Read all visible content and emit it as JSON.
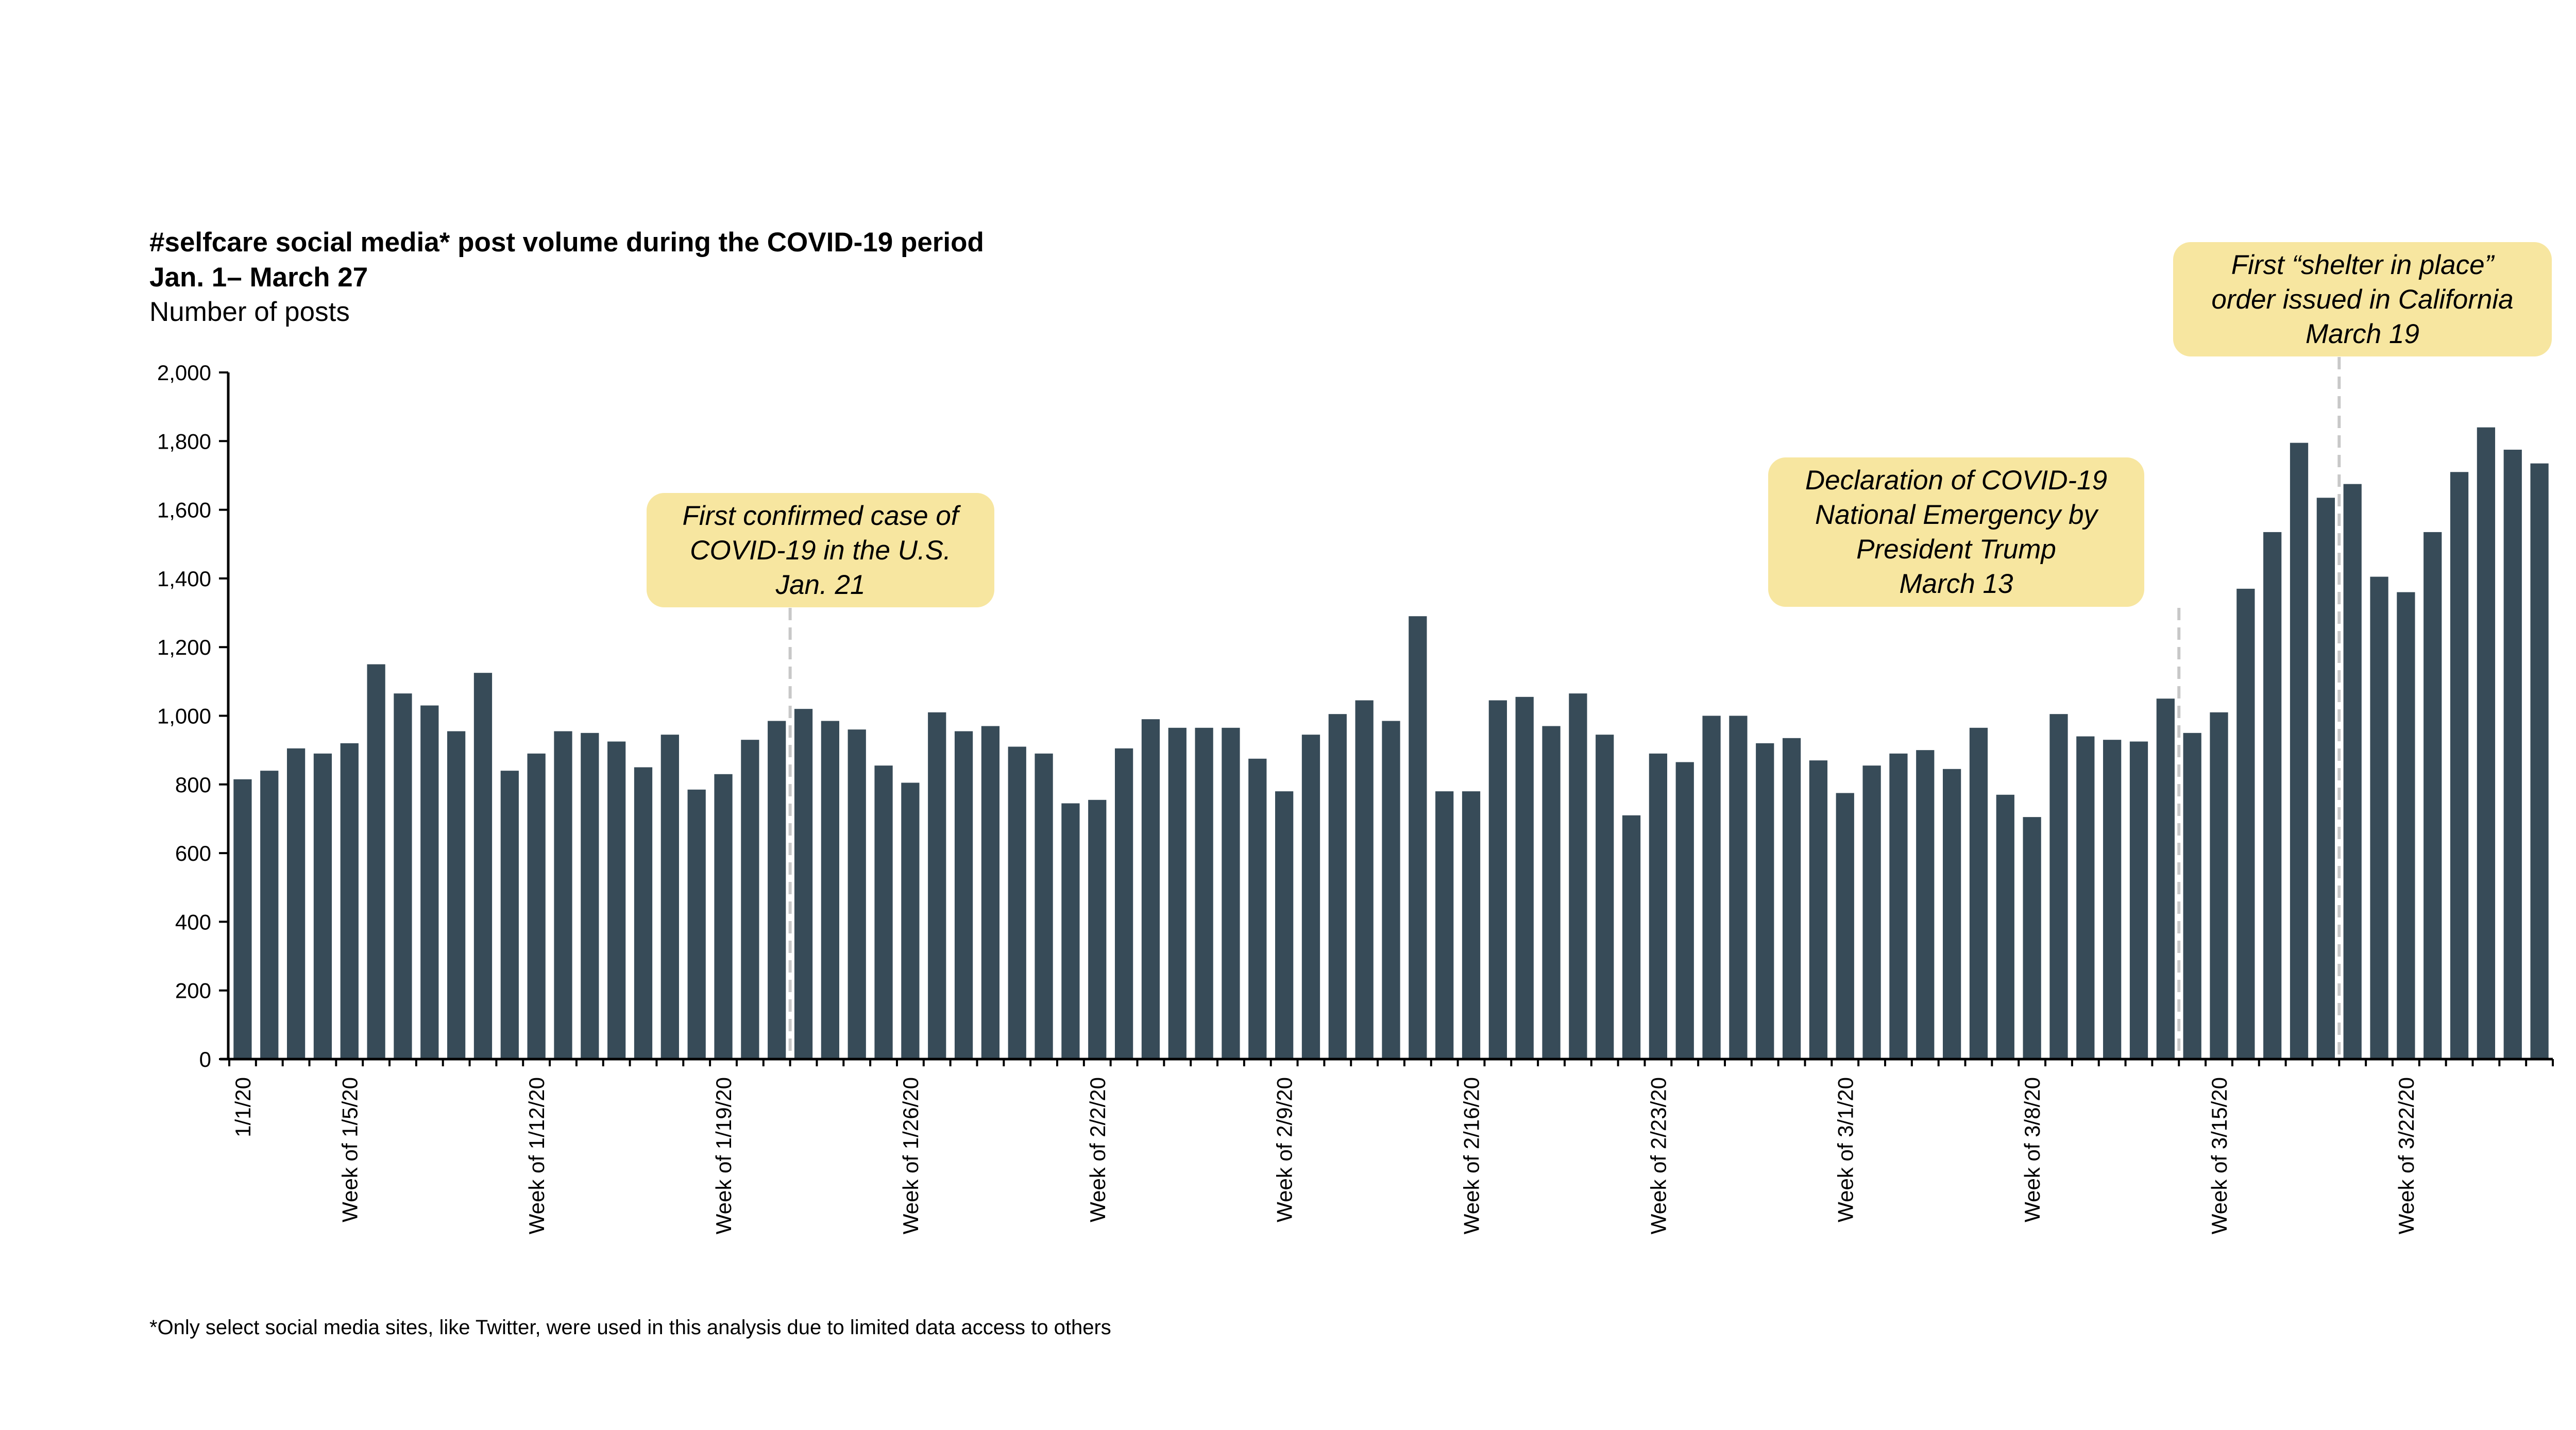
{
  "header": {
    "title": "#selfcare social media* post volume during the COVID-19 period",
    "subtitle": "Jan. 1– March 27",
    "unit": "Number of posts"
  },
  "footnote": "*Only select social media sites, like Twitter, were used in this analysis due to limited data access to others",
  "colors": {
    "bar": "#374b58",
    "callout_bg": "#f7e6a0",
    "axis": "#000000",
    "guide": "#c8c8c8"
  },
  "annotations": [
    {
      "lines": [
        "First confirmed case of",
        "COVID-19 in the U.S.",
        "Jan. 21"
      ],
      "x_index": 20.5
    },
    {
      "lines": [
        "Declaration of COVID-19",
        "National Emergency by",
        "President Trump",
        "March 13"
      ],
      "x_index": 72.5
    },
    {
      "lines": [
        "First “shelter in place”",
        "order issued in California",
        "March 19"
      ],
      "x_index": 78.5
    }
  ],
  "chart_data": {
    "type": "bar",
    "title": "#selfcare social media* post volume during the COVID-19 period",
    "subtitle": "Jan. 1– March 27",
    "ylabel": "Number of posts",
    "ylim": [
      0,
      2000
    ],
    "yticks": [
      0,
      200,
      400,
      600,
      800,
      1000,
      1200,
      1400,
      1600,
      1800,
      2000
    ],
    "ytick_labels": [
      "0",
      "200",
      "400",
      "600",
      "800",
      "1,000",
      "1,200",
      "1,400",
      "1,600",
      "1,800",
      "2,000"
    ],
    "xtick_labels": [
      {
        "label": "1/1/20",
        "index": 0
      },
      {
        "label": "Week of 1/5/20",
        "index": 4
      },
      {
        "label": "Week of 1/12/20",
        "index": 11
      },
      {
        "label": "Week of 1/19/20",
        "index": 18
      },
      {
        "label": "Week of 1/26/20",
        "index": 25
      },
      {
        "label": "Week of 2/2/20",
        "index": 32
      },
      {
        "label": "Week of 2/9/20",
        "index": 39
      },
      {
        "label": "Week of 2/16/20",
        "index": 46
      },
      {
        "label": "Week of 2/23/20",
        "index": 53
      },
      {
        "label": "Week of 3/1/20",
        "index": 60
      },
      {
        "label": "Week of 3/8/20",
        "index": 67
      },
      {
        "label": "Week of 3/15/20",
        "index": 74
      },
      {
        "label": "Week of 3/22/20",
        "index": 81
      }
    ],
    "values": [
      815,
      840,
      905,
      890,
      920,
      1150,
      1065,
      1030,
      955,
      1125,
      840,
      890,
      955,
      950,
      925,
      850,
      945,
      785,
      830,
      930,
      985,
      1020,
      985,
      960,
      855,
      805,
      1010,
      955,
      970,
      910,
      890,
      745,
      755,
      905,
      990,
      965,
      965,
      965,
      875,
      780,
      945,
      1005,
      1045,
      985,
      1290,
      780,
      780,
      1045,
      1055,
      970,
      1065,
      945,
      710,
      890,
      865,
      1000,
      1000,
      920,
      935,
      870,
      775,
      855,
      890,
      900,
      845,
      965,
      770,
      705,
      1005,
      940,
      930,
      925,
      1050,
      950,
      1010,
      1370,
      1535,
      1795,
      1635,
      1675,
      1405,
      1360,
      1535,
      1710,
      1840,
      1775,
      1735
    ]
  }
}
